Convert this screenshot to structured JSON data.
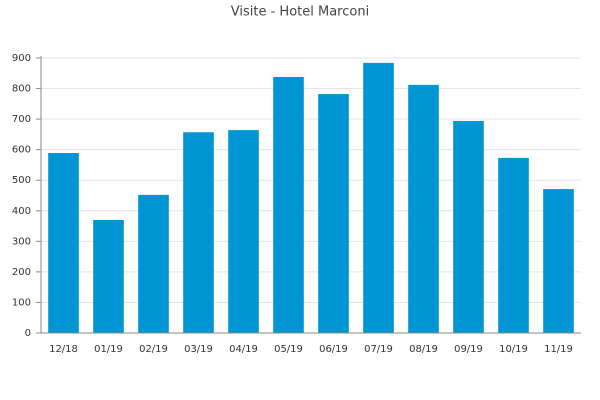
{
  "chart_data": {
    "type": "bar",
    "title": "Visite - Hotel Marconi",
    "categories": [
      "12/18",
      "01/19",
      "02/19",
      "03/19",
      "04/19",
      "05/19",
      "06/19",
      "07/19",
      "08/19",
      "09/19",
      "10/19",
      "11/19"
    ],
    "values": [
      589,
      370,
      452,
      657,
      664,
      838,
      782,
      884,
      812,
      694,
      573,
      471
    ],
    "color": "#0095d3",
    "ylim": [
      0,
      900
    ],
    "yticks": [
      0,
      100,
      200,
      300,
      400,
      500,
      600,
      700,
      800,
      900
    ],
    "grid": true
  }
}
